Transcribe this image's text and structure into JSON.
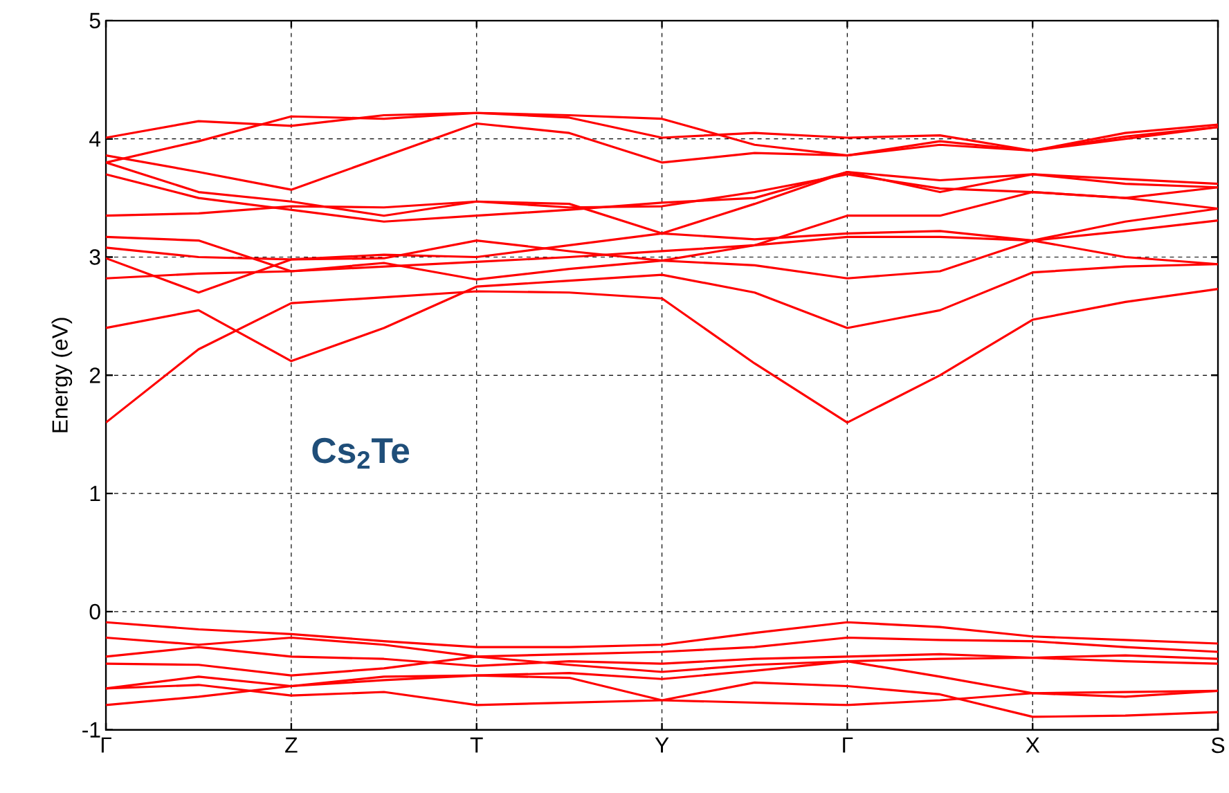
{
  "chart_data": {
    "type": "line",
    "ylabel": "Energy (eV)",
    "annotations": [
      "Cs$_{2}$Te"
    ],
    "categories": [
      "Γ",
      null,
      "Z",
      null,
      "T",
      null,
      "Y",
      null,
      "Γ",
      null,
      "X",
      null,
      "S"
    ],
    "ylim": [
      -1,
      5
    ],
    "yticks": [
      -1,
      0,
      1,
      2,
      3,
      4,
      5
    ],
    "grid": true,
    "marker": "none",
    "line_style": "solid",
    "series": [
      {
        "color": "#ff0000",
        "values": [
          1.6,
          2.22,
          2.61,
          2.66,
          2.71,
          2.7,
          2.65,
          2.1,
          1.6,
          2.0,
          2.47,
          2.62,
          2.73
        ]
      },
      {
        "color": "#ff0000",
        "values": [
          2.4,
          2.55,
          2.12,
          2.4,
          2.75,
          2.8,
          2.85,
          2.7,
          2.4,
          2.55,
          2.87,
          2.92,
          2.94
        ]
      },
      {
        "color": "#ff0000",
        "values": [
          2.82,
          2.86,
          2.88,
          2.92,
          2.96,
          3.0,
          3.05,
          3.1,
          3.17,
          3.17,
          3.14,
          3.22,
          3.31
        ]
      },
      {
        "color": "#ff0000",
        "values": [
          2.99,
          2.7,
          2.98,
          2.99,
          3.14,
          3.05,
          2.97,
          2.93,
          2.82,
          2.88,
          3.14,
          3.0,
          2.94
        ]
      },
      {
        "color": "#ff0000",
        "values": [
          3.08,
          3.0,
          2.98,
          3.02,
          3.0,
          3.1,
          3.2,
          3.15,
          3.2,
          3.22,
          3.14,
          3.3,
          3.41
        ]
      },
      {
        "color": "#ff0000",
        "values": [
          3.17,
          3.14,
          2.88,
          2.95,
          2.81,
          2.9,
          2.97,
          3.1,
          3.35,
          3.35,
          3.55,
          3.5,
          3.41
        ]
      },
      {
        "color": "#ff0000",
        "values": [
          3.35,
          3.37,
          3.43,
          3.42,
          3.47,
          3.42,
          3.43,
          3.55,
          3.7,
          3.58,
          3.55,
          3.5,
          3.59
        ]
      },
      {
        "color": "#ff0000",
        "values": [
          3.7,
          3.5,
          3.4,
          3.3,
          3.35,
          3.4,
          3.46,
          3.5,
          3.72,
          3.55,
          3.7,
          3.62,
          3.59
        ]
      },
      {
        "color": "#ff0000",
        "values": [
          3.8,
          3.55,
          3.47,
          3.35,
          3.47,
          3.45,
          3.2,
          3.45,
          3.72,
          3.65,
          3.7,
          3.66,
          3.62
        ]
      },
      {
        "color": "#ff0000",
        "values": [
          3.86,
          3.72,
          3.57,
          3.85,
          4.13,
          4.05,
          3.8,
          3.88,
          3.86,
          3.95,
          3.9,
          4.0,
          4.1
        ]
      },
      {
        "color": "#ff0000",
        "values": [
          4.01,
          4.15,
          4.11,
          4.2,
          4.22,
          4.18,
          4.01,
          4.05,
          4.01,
          4.03,
          3.9,
          4.02,
          4.1
        ]
      },
      {
        "color": "#ff0000",
        "values": [
          3.8,
          3.98,
          4.19,
          4.17,
          4.22,
          4.2,
          4.17,
          3.95,
          3.86,
          3.98,
          3.9,
          4.05,
          4.12
        ]
      },
      {
        "color": "#ff0000",
        "values": [
          -0.09,
          -0.15,
          -0.19,
          -0.25,
          -0.3,
          -0.3,
          -0.28,
          -0.18,
          -0.09,
          -0.13,
          -0.21,
          -0.24,
          -0.27
        ]
      },
      {
        "color": "#ff0000",
        "values": [
          -0.22,
          -0.28,
          -0.22,
          -0.28,
          -0.38,
          -0.36,
          -0.34,
          -0.3,
          -0.22,
          -0.24,
          -0.25,
          -0.3,
          -0.34
        ]
      },
      {
        "color": "#ff0000",
        "values": [
          -0.38,
          -0.3,
          -0.38,
          -0.4,
          -0.46,
          -0.42,
          -0.44,
          -0.4,
          -0.38,
          -0.36,
          -0.39,
          -0.37,
          -0.4
        ]
      },
      {
        "color": "#ff0000",
        "values": [
          -0.44,
          -0.45,
          -0.54,
          -0.48,
          -0.38,
          -0.45,
          -0.51,
          -0.45,
          -0.42,
          -0.4,
          -0.39,
          -0.42,
          -0.44
        ]
      },
      {
        "color": "#ff0000",
        "values": [
          -0.65,
          -0.55,
          -0.63,
          -0.55,
          -0.54,
          -0.52,
          -0.57,
          -0.5,
          -0.42,
          -0.55,
          -0.69,
          -0.68,
          -0.67
        ]
      },
      {
        "color": "#ff0000",
        "values": [
          -0.65,
          -0.62,
          -0.71,
          -0.68,
          -0.79,
          -0.77,
          -0.75,
          -0.6,
          -0.63,
          -0.7,
          -0.89,
          -0.88,
          -0.85
        ]
      },
      {
        "color": "#ff0000",
        "values": [
          -0.79,
          -0.72,
          -0.63,
          -0.58,
          -0.54,
          -0.56,
          -0.75,
          -0.77,
          -0.79,
          -0.75,
          -0.69,
          -0.72,
          -0.67
        ]
      }
    ]
  }
}
